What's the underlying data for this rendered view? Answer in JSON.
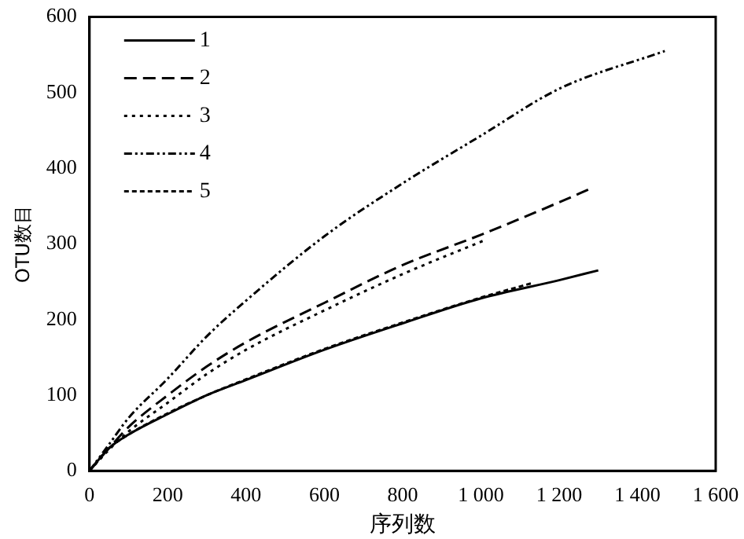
{
  "chart_data": {
    "type": "line",
    "xlabel": "序列数",
    "ylabel": "OTU数目",
    "xlim": [
      0,
      1600
    ],
    "xticks": [
      0,
      200,
      400,
      600,
      800,
      {
        "value": 1000,
        "label": "1 000"
      },
      {
        "value": 1200,
        "label": "1 200"
      },
      {
        "value": 1400,
        "label": "1 400"
      },
      {
        "value": 1600,
        "label": "1 600"
      }
    ],
    "ylim": [
      0,
      600
    ],
    "yticks": [
      0,
      100,
      200,
      300,
      400,
      500,
      600
    ],
    "grid": false,
    "legend": "top left",
    "marker": "none",
    "series": [
      {
        "name": "1",
        "color": "#000000",
        "line_style": "solid",
        "x": [
          0,
          50,
          100,
          200,
          300,
          400,
          600,
          800,
          1000,
          1200,
          1300
        ],
        "values": [
          0,
          30,
          48,
          75,
          100,
          120,
          160,
          195,
          228,
          252,
          265
        ]
      },
      {
        "name": "2",
        "color": "#000000",
        "line_style": "dashed",
        "x": [
          0,
          50,
          100,
          200,
          300,
          400,
          600,
          800,
          1000,
          1200,
          1280
        ],
        "values": [
          0,
          30,
          58,
          100,
          138,
          170,
          222,
          272,
          312,
          355,
          373
        ]
      },
      {
        "name": "3",
        "color": "#000000",
        "line_style": "dotted",
        "x": [
          0,
          50,
          100,
          200,
          300,
          400,
          600,
          800,
          1010
        ],
        "values": [
          0,
          28,
          52,
          90,
          128,
          160,
          212,
          260,
          305
        ]
      },
      {
        "name": "4",
        "color": "#000000",
        "line_style": "dashdotdot",
        "x": [
          0,
          50,
          100,
          200,
          300,
          400,
          600,
          800,
          1000,
          1200,
          1470
        ],
        "values": [
          0,
          35,
          70,
          122,
          178,
          225,
          310,
          380,
          443,
          505,
          555
        ]
      },
      {
        "name": "5",
        "color": "#000000",
        "line_style": "shortdash",
        "x": [
          0,
          50,
          100,
          200,
          300,
          400,
          600,
          800,
          1000,
          1130
        ],
        "values": [
          0,
          30,
          48,
          76,
          100,
          121,
          161,
          196,
          229,
          248
        ]
      }
    ]
  }
}
